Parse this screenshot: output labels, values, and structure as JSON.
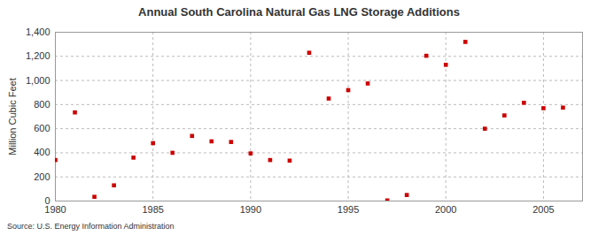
{
  "chart_data": {
    "type": "scatter",
    "title": "Annual South Carolina Natural Gas LNG Storage Additions",
    "y_label": "Million Cubic Feet",
    "caption": "Source: U.S. Energy Information Administration",
    "x": [
      1980,
      1981,
      1982,
      1983,
      1984,
      1985,
      1986,
      1987,
      1988,
      1989,
      1990,
      1991,
      1992,
      1993,
      1994,
      1995,
      1996,
      1997,
      1998,
      1999,
      2000,
      2001,
      2002,
      2003,
      2004,
      2005,
      2006
    ],
    "values": [
      340,
      735,
      35,
      130,
      360,
      480,
      400,
      540,
      495,
      490,
      395,
      340,
      335,
      1230,
      850,
      920,
      975,
      5,
      50,
      1205,
      1130,
      1320,
      600,
      710,
      815,
      770,
      775
    ],
    "color": "#cc0000",
    "marker": "square",
    "xlim": [
      1980,
      2007
    ],
    "xticks": [
      1980,
      1985,
      1990,
      1995,
      2000,
      2005
    ],
    "ylim": [
      0,
      1400
    ],
    "yticks": [
      0,
      200,
      400,
      600,
      800,
      {
        "value": 1000,
        "label": "1,000"
      },
      {
        "value": 1200,
        "label": "1,200"
      },
      {
        "value": 1400,
        "label": "1,400"
      }
    ],
    "grid": true
  }
}
